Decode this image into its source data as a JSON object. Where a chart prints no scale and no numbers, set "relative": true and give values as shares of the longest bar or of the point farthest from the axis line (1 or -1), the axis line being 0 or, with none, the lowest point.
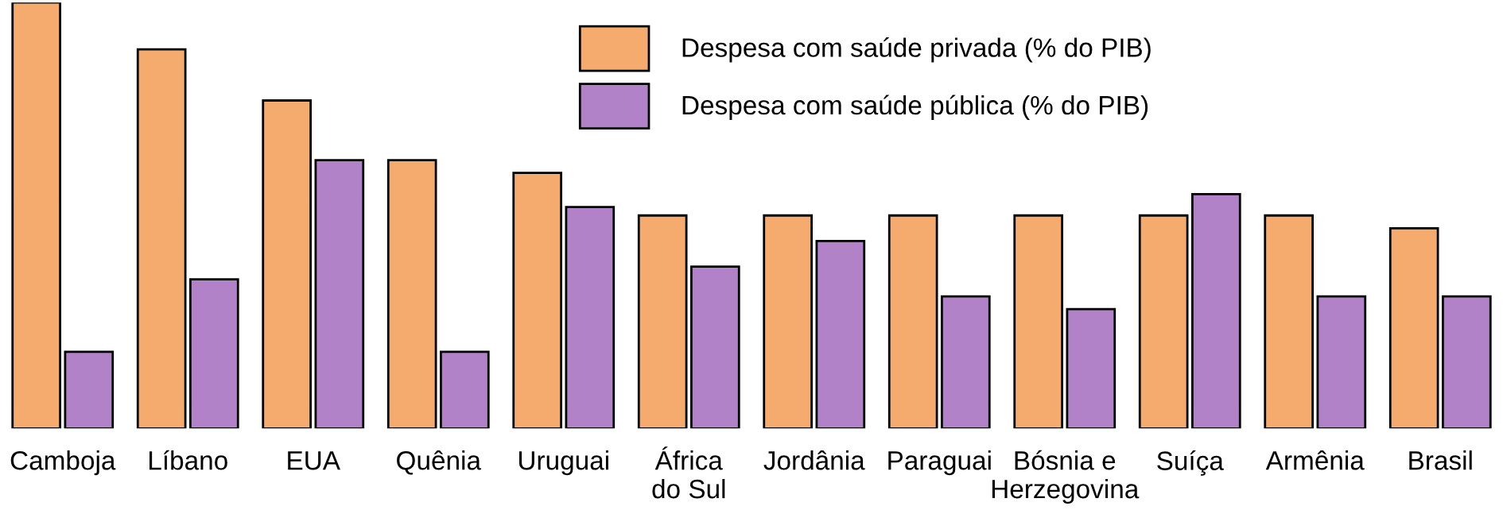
{
  "chart_data": {
    "type": "bar",
    "relative": true,
    "categories": [
      "Camboja",
      "Líbano",
      "EUA",
      "Quênia",
      "Uruguai",
      "África\ndo Sul",
      "Jordânia",
      "Paraguai",
      "Bósnia e\nHerzegovina",
      "Suíça",
      "Armênia",
      "Brasil"
    ],
    "series": [
      {
        "name": "Despesa com saúde privada (% do PIB)",
        "color": "#f5ab6e",
        "values": [
          1.0,
          0.89,
          0.77,
          0.63,
          0.6,
          0.5,
          0.5,
          0.5,
          0.5,
          0.5,
          0.5,
          0.47
        ]
      },
      {
        "name": "Despesa com saúde pública (% do PIB)",
        "color": "#b282c8",
        "values": [
          0.18,
          0.35,
          0.63,
          0.18,
          0.52,
          0.38,
          0.44,
          0.31,
          0.28,
          0.55,
          0.31,
          0.31
        ]
      }
    ],
    "legend": "top",
    "grid": false
  }
}
